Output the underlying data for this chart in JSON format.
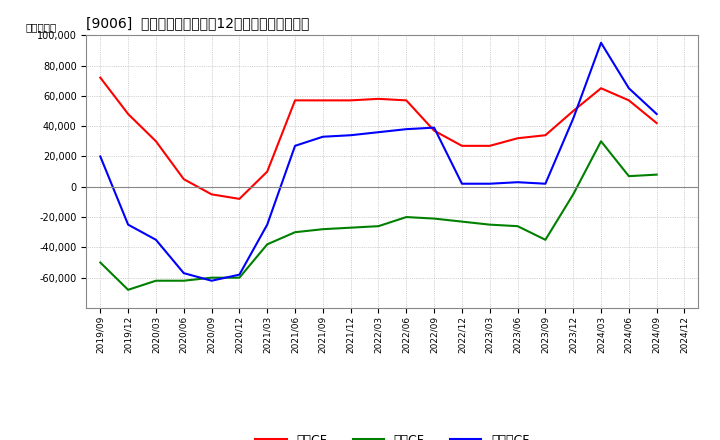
{
  "title": "[9006]  キャッシュフローの12か月移動合計の推移",
  "ylabel": "（百万円）",
  "x_labels": [
    "2019/09",
    "2019/12",
    "2020/03",
    "2020/06",
    "2020/09",
    "2020/12",
    "2021/03",
    "2021/06",
    "2021/09",
    "2021/12",
    "2022/03",
    "2022/06",
    "2022/09",
    "2022/12",
    "2023/03",
    "2023/06",
    "2023/09",
    "2023/12",
    "2024/03",
    "2024/06",
    "2024/09",
    "2024/12"
  ],
  "eigyo_cf": [
    72000,
    48000,
    30000,
    5000,
    -5000,
    -8000,
    10000,
    57000,
    57000,
    57000,
    58000,
    57000,
    37000,
    27000,
    27000,
    32000,
    34000,
    50000,
    65000,
    57000,
    42000,
    null
  ],
  "toshi_cf": [
    -50000,
    -68000,
    -62000,
    -62000,
    -60000,
    -60000,
    -38000,
    -30000,
    -28000,
    -27000,
    -26000,
    -20000,
    -21000,
    -23000,
    -25000,
    -26000,
    -35000,
    -5000,
    30000,
    7000,
    8000,
    null
  ],
  "free_cf": [
    20000,
    -25000,
    -35000,
    -57000,
    -62000,
    -58000,
    -25000,
    27000,
    33000,
    34000,
    36000,
    38000,
    39000,
    2000,
    2000,
    3000,
    2000,
    45000,
    95000,
    65000,
    48000,
    null
  ],
  "eigyo_color": "#ff0000",
  "toshi_color": "#008000",
  "free_color": "#0000ff",
  "background_color": "#ffffff",
  "grid_color": "#aaaaaa",
  "ylim": [
    -80000,
    100000
  ],
  "yticks": [
    -60000,
    -40000,
    -20000,
    0,
    20000,
    40000,
    60000,
    80000,
    100000
  ],
  "legend_labels": [
    "営業CF",
    "投資CF",
    "フリーCF"
  ]
}
